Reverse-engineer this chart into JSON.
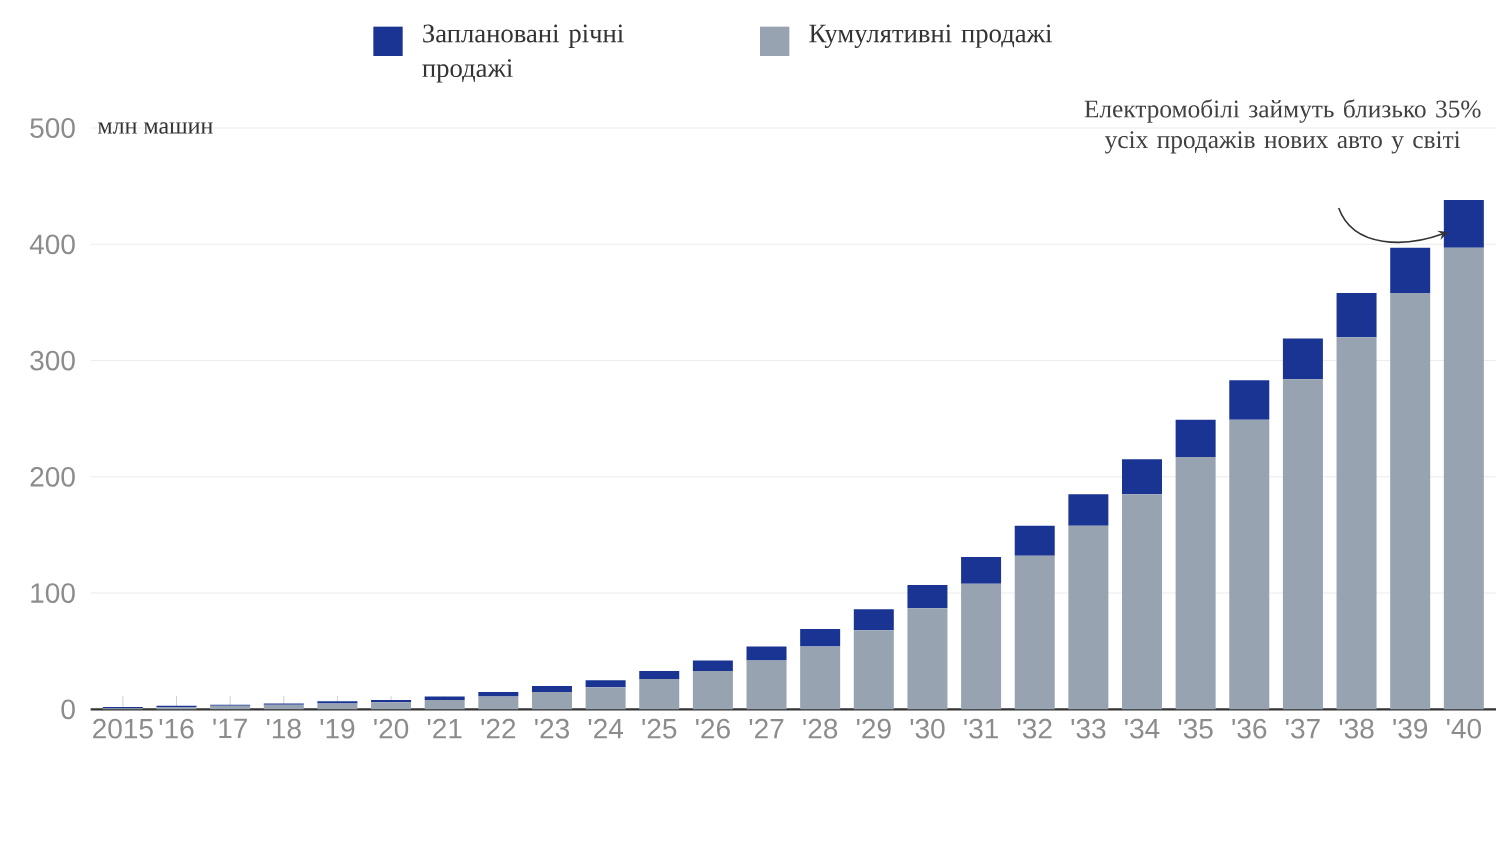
{
  "chart_data": {
    "type": "bar",
    "stacked": true,
    "ylabel": "млн машин",
    "categories": [
      "2015",
      "'16",
      "'17",
      "'18",
      "'19",
      "'20",
      "'21",
      "'22",
      "'23",
      "'24",
      "'25",
      "'26",
      "'27",
      "'28",
      "'29",
      "'30",
      "'31",
      "'32",
      "'33",
      "'34",
      "'35",
      "'36",
      "'37",
      "'38",
      "'39",
      "'40"
    ],
    "series": [
      {
        "name": "Кумулятивні продажі",
        "color": "#97a3b1",
        "values": [
          1,
          2,
          3,
          4,
          5,
          6,
          8,
          11,
          15,
          19,
          26,
          33,
          42,
          54,
          68,
          87,
          108,
          132,
          158,
          185,
          217,
          249,
          284,
          320,
          358,
          397
        ]
      },
      {
        "name": "Заплановані річні продажі",
        "color": "#1a3494",
        "values": [
          1,
          1,
          1,
          1,
          2,
          2,
          3,
          4,
          5,
          6,
          7,
          9,
          12,
          15,
          18,
          20,
          23,
          26,
          27,
          30,
          32,
          34,
          35,
          38,
          39,
          41
        ]
      }
    ],
    "ylim": [
      0,
      500
    ],
    "yticks": [
      0,
      100,
      200,
      300,
      400,
      500
    ],
    "grid": "y",
    "legend": "top",
    "annotations": [
      "Електромобілі займуть близько 35% усіх продажів нових авто у світі"
    ]
  }
}
